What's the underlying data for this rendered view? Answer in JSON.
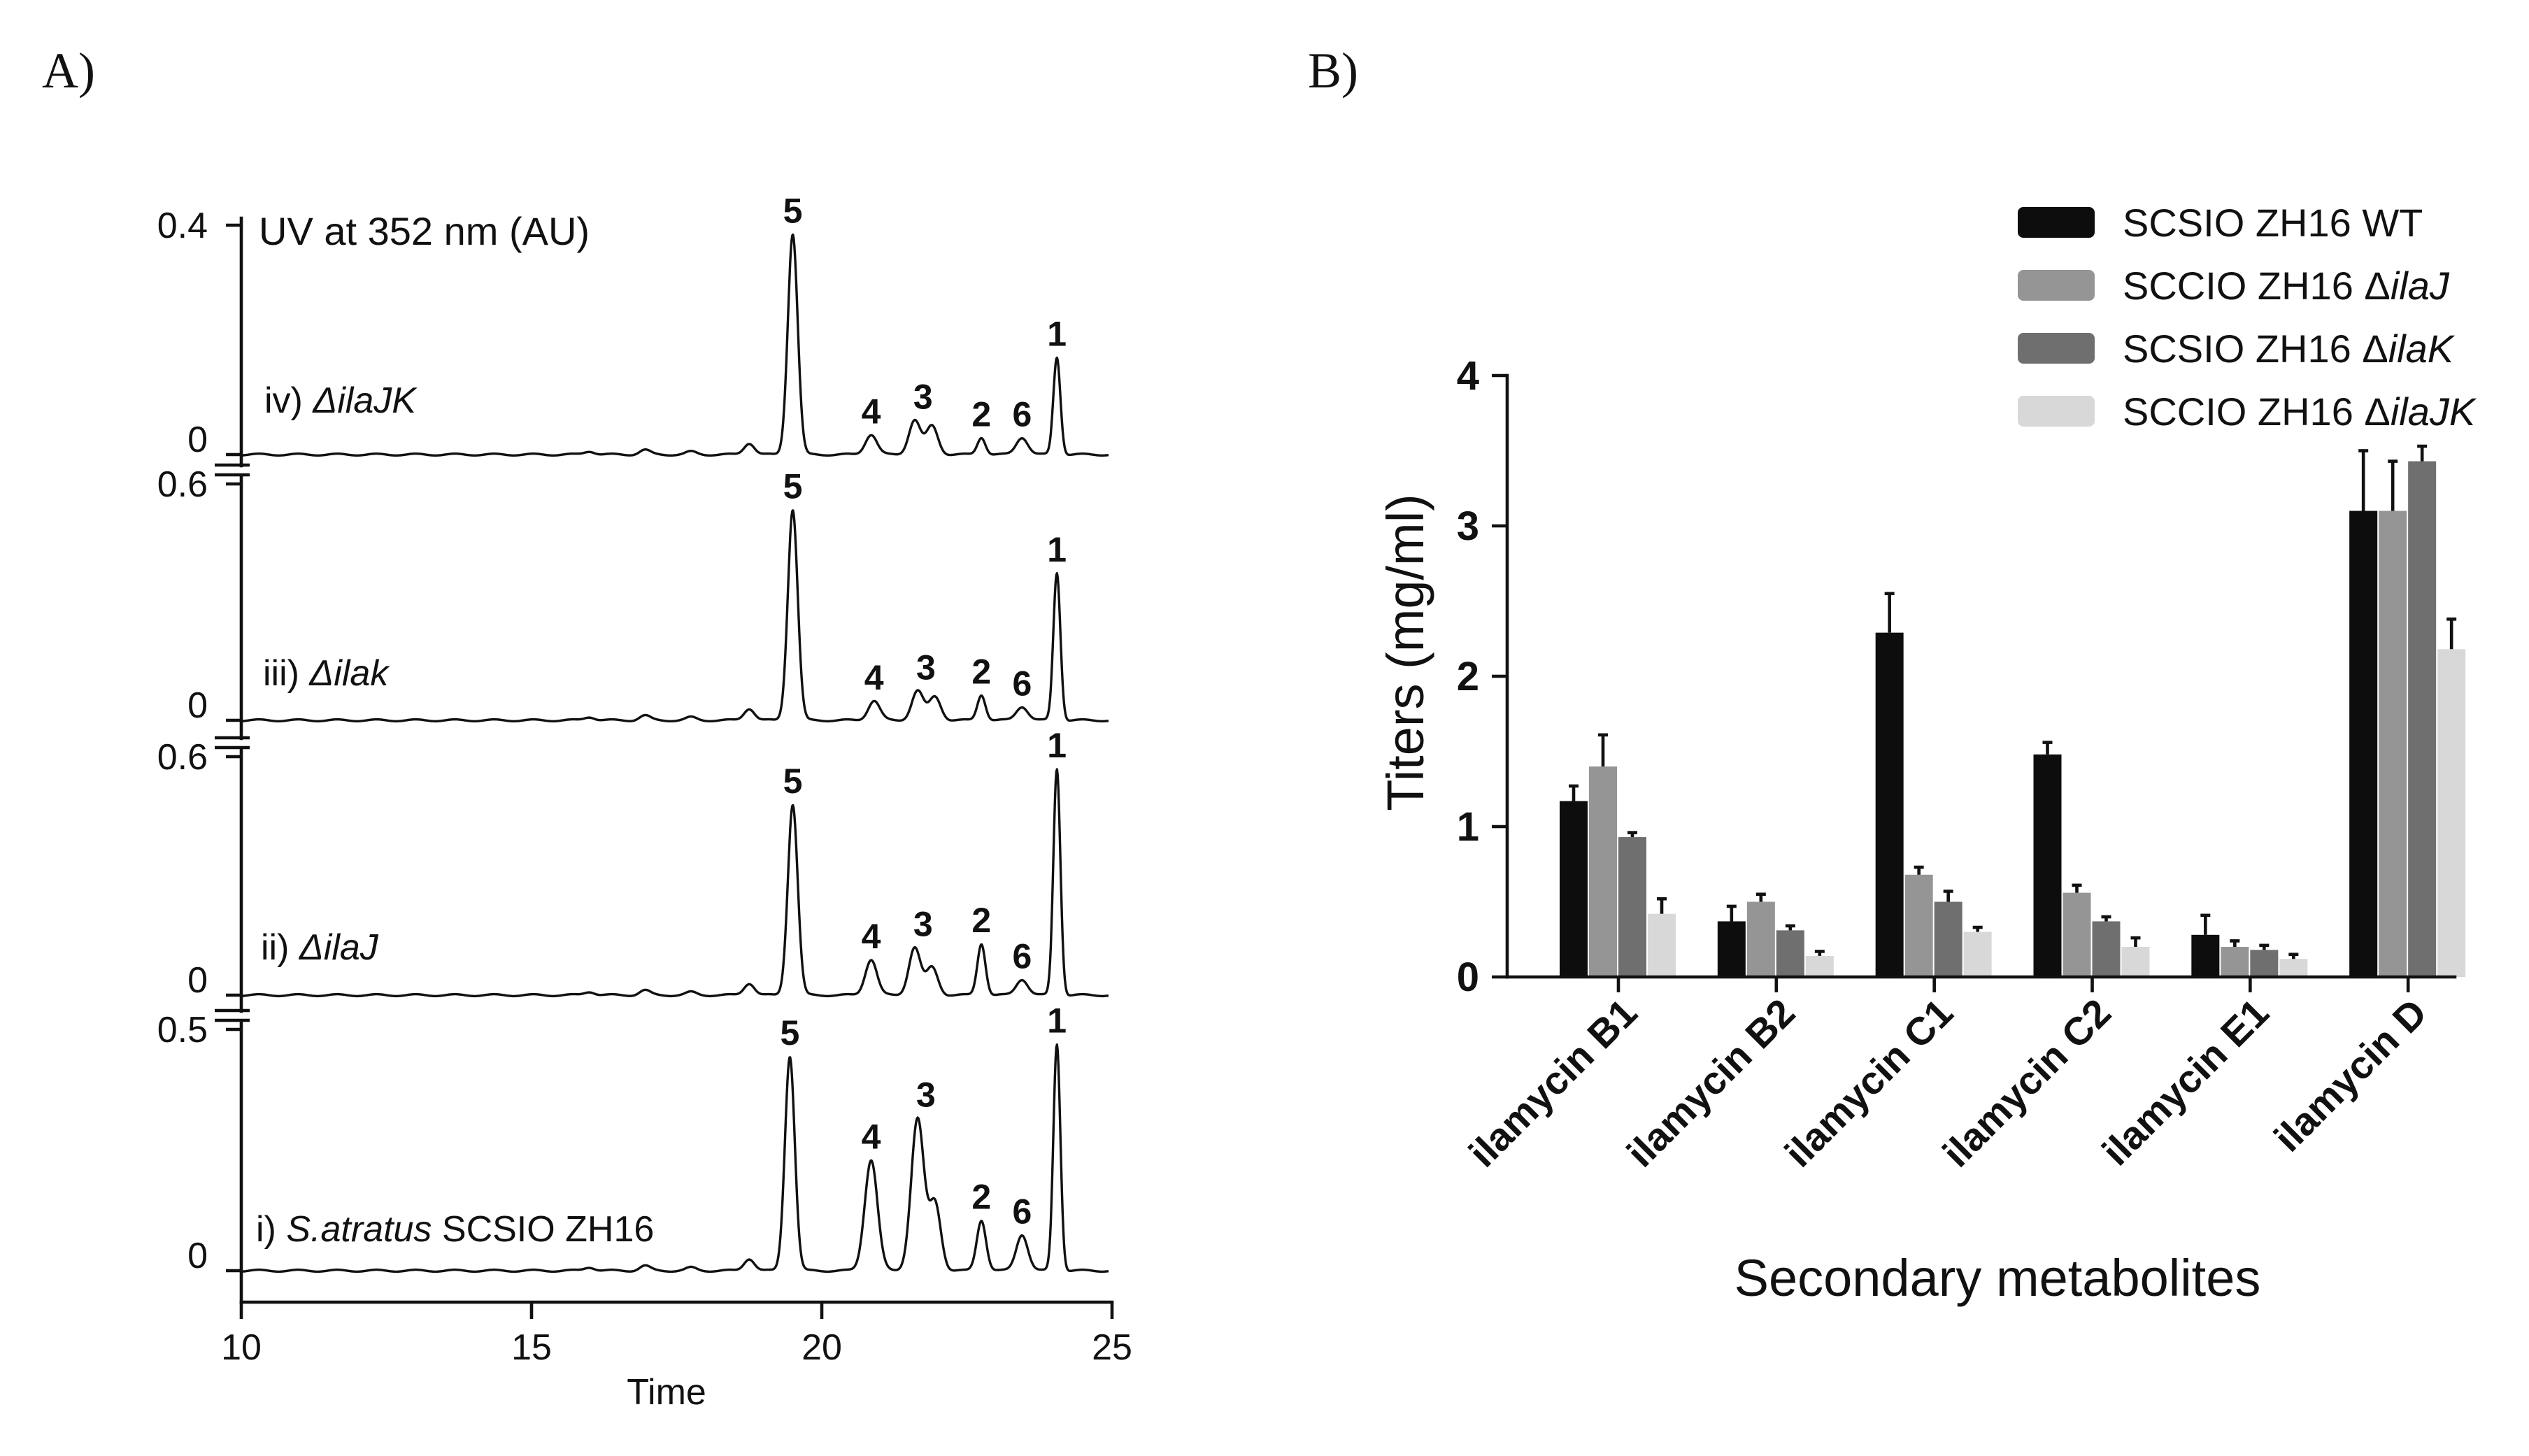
{
  "panels": {
    "a_label": "A)",
    "b_label": "B)"
  },
  "chart_data": [
    {
      "type": "line",
      "title": "UV at 352 nm (AU)",
      "xlabel": "Time",
      "xlim": [
        10,
        25
      ],
      "xticks": [
        "10",
        "15",
        "20",
        "25"
      ],
      "traces": [
        {
          "id": "i",
          "label_prefix": "i) ",
          "label_italic": "S.atratus",
          "label_suffix": " SCSIO ZH16",
          "ytick_top": "0.5",
          "ytick_zero": "0",
          "ymax": 0.5,
          "peaks": [
            {
              "label": "5",
              "time": 19.45,
              "height": 0.445,
              "width": 0.085
            },
            {
              "label": "4",
              "time": 20.85,
              "height": 0.23,
              "width": 0.11
            },
            {
              "label": "3",
              "time": 21.65,
              "height": 0.315,
              "width": 0.11
            },
            {
              "label": "",
              "time": 21.95,
              "height": 0.14,
              "width": 0.1
            },
            {
              "label": "2",
              "time": 22.75,
              "height": 0.105,
              "width": 0.08
            },
            {
              "label": "6",
              "time": 23.45,
              "height": 0.075,
              "width": 0.1
            },
            {
              "label": "1",
              "time": 24.05,
              "height": 0.47,
              "width": 0.06
            }
          ]
        },
        {
          "id": "ii",
          "label_prefix": "ii) ",
          "label_italic": "ΔilaJ",
          "label_suffix": "",
          "ytick_top": "0.6",
          "ytick_zero": "0",
          "ymax": 0.6,
          "peaks": [
            {
              "label": "5",
              "time": 19.5,
              "height": 0.48,
              "width": 0.085
            },
            {
              "label": "4",
              "time": 20.85,
              "height": 0.09,
              "width": 0.1
            },
            {
              "label": "3",
              "time": 21.6,
              "height": 0.12,
              "width": 0.1
            },
            {
              "label": "",
              "time": 21.9,
              "height": 0.07,
              "width": 0.1
            },
            {
              "label": "2",
              "time": 22.75,
              "height": 0.13,
              "width": 0.07
            },
            {
              "label": "6",
              "time": 23.45,
              "height": 0.04,
              "width": 0.1
            },
            {
              "label": "1",
              "time": 24.05,
              "height": 0.57,
              "width": 0.06
            }
          ]
        },
        {
          "id": "iii",
          "label_prefix": "iii) ",
          "label_italic": "Δilak",
          "label_suffix": "",
          "ytick_top": "0.6",
          "ytick_zero": "0",
          "ymax": 0.6,
          "peaks": [
            {
              "label": "5",
              "time": 19.5,
              "height": 0.535,
              "width": 0.085
            },
            {
              "label": "4",
              "time": 20.9,
              "height": 0.05,
              "width": 0.1
            },
            {
              "label": "3",
              "time": 21.65,
              "height": 0.075,
              "width": 0.1
            },
            {
              "label": "",
              "time": 21.95,
              "height": 0.06,
              "width": 0.1
            },
            {
              "label": "2",
              "time": 22.75,
              "height": 0.065,
              "width": 0.07
            },
            {
              "label": "6",
              "time": 23.45,
              "height": 0.035,
              "width": 0.1
            },
            {
              "label": "1",
              "time": 24.05,
              "height": 0.375,
              "width": 0.06
            }
          ]
        },
        {
          "id": "iv",
          "label_prefix": "iv) ",
          "label_italic": "ΔilaJK",
          "label_suffix": "",
          "ytick_top": "0.4",
          "ytick_zero": "0",
          "ymax": 0.4,
          "peaks": [
            {
              "label": "5",
              "time": 19.5,
              "height": 0.385,
              "width": 0.085
            },
            {
              "label": "4",
              "time": 20.85,
              "height": 0.035,
              "width": 0.1
            },
            {
              "label": "3",
              "time": 21.6,
              "height": 0.06,
              "width": 0.1
            },
            {
              "label": "",
              "time": 21.9,
              "height": 0.05,
              "width": 0.1
            },
            {
              "label": "2",
              "time": 22.75,
              "height": 0.03,
              "width": 0.07
            },
            {
              "label": "6",
              "time": 23.45,
              "height": 0.03,
              "width": 0.1
            },
            {
              "label": "1",
              "time": 24.05,
              "height": 0.17,
              "width": 0.06
            }
          ]
        }
      ]
    },
    {
      "type": "bar",
      "xlabel": "Secondary metabolites",
      "ylabel": "Titers (mg/ml)",
      "ylim": [
        0,
        4
      ],
      "yticks": [
        "0",
        "1",
        "2",
        "3",
        "4"
      ],
      "categories": [
        "ilamycin B1",
        "ilamycin B2",
        "ilamycin C1",
        "ilamycin C2",
        "ilamycin E1",
        "ilamycin D"
      ],
      "series": [
        {
          "name_prefix": "SCSIO ZH16 ",
          "name_italic": "",
          "name_tail": "WT",
          "color": "#0d0d0d",
          "values": [
            1.17,
            0.37,
            2.29,
            1.48,
            0.28,
            3.1
          ],
          "errors": [
            0.1,
            0.1,
            0.26,
            0.08,
            0.13,
            0.4
          ]
        },
        {
          "name_prefix": "SCCIO ZH16 Δ",
          "name_italic": "ilaJ",
          "name_tail": "",
          "color": "#959595",
          "values": [
            1.4,
            0.5,
            0.68,
            0.56,
            0.2,
            3.1
          ],
          "errors": [
            0.21,
            0.05,
            0.05,
            0.05,
            0.04,
            0.33
          ]
        },
        {
          "name_prefix": "SCSIO ZH16 Δ",
          "name_italic": "ilaK",
          "name_tail": "",
          "color": "#6f6f6f",
          "values": [
            0.93,
            0.31,
            0.5,
            0.37,
            0.18,
            3.43
          ],
          "errors": [
            0.03,
            0.03,
            0.07,
            0.03,
            0.03,
            0.1
          ]
        },
        {
          "name_prefix": "SCCIO ZH16 Δ",
          "name_italic": "ilaJK",
          "name_tail": "",
          "color": "#d8d8d8",
          "values": [
            0.42,
            0.14,
            0.3,
            0.2,
            0.12,
            2.18
          ],
          "errors": [
            0.1,
            0.03,
            0.03,
            0.06,
            0.03,
            0.2
          ]
        }
      ],
      "legend_position": "top-right"
    }
  ]
}
